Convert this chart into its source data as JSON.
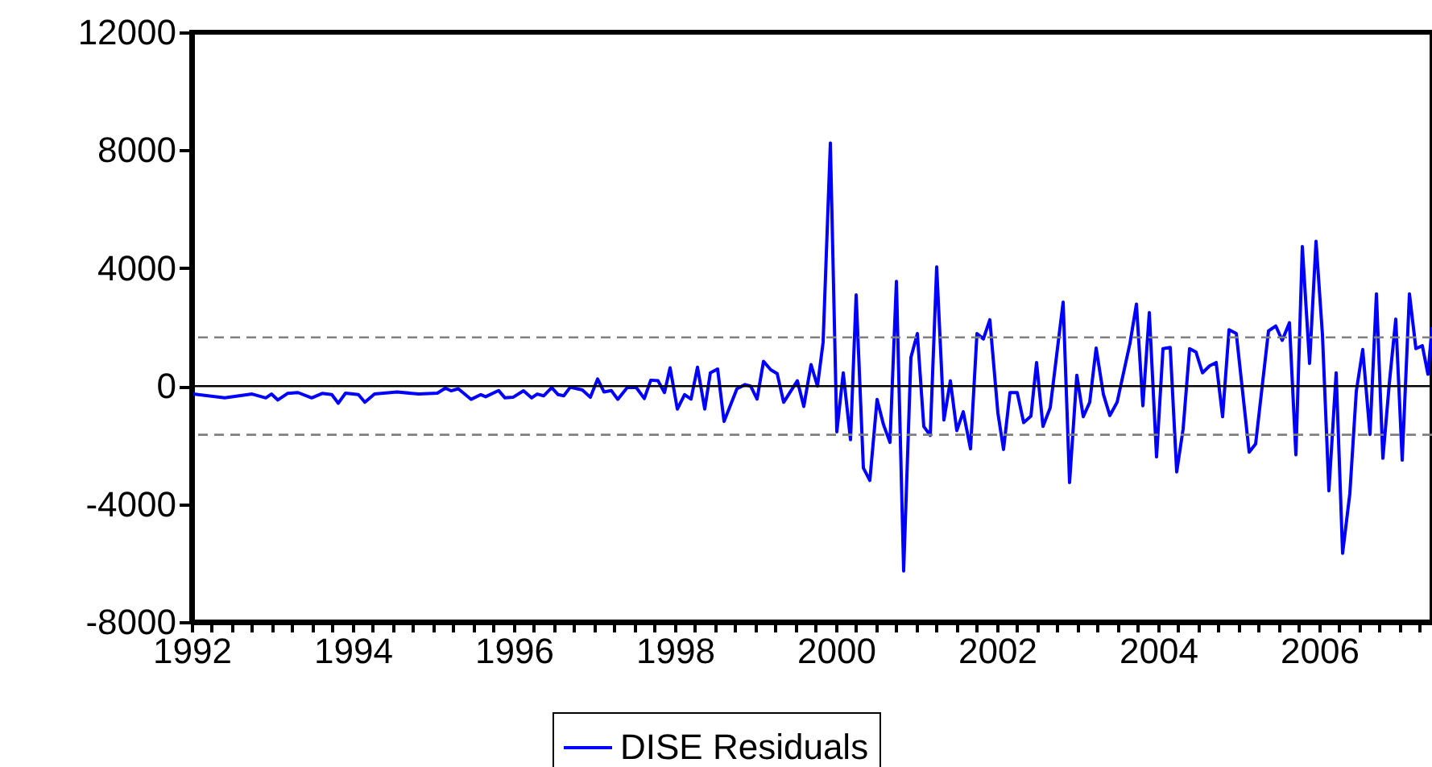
{
  "chart_data": {
    "type": "line",
    "legend": "bottom",
    "grid": false,
    "marker": "none",
    "line_style": "solid",
    "xlim": [
      1992,
      2007.4
    ],
    "xticks": [
      1992,
      {
        "value": 1992.25,
        "label": null
      },
      {
        "value": 1992.5,
        "label": null
      },
      {
        "value": 1992.75,
        "label": null
      },
      {
        "value": 1993,
        "label": null
      },
      {
        "value": 1993.25,
        "label": null
      },
      {
        "value": 1993.5,
        "label": null
      },
      {
        "value": 1993.75,
        "label": null
      },
      1994,
      {
        "value": 1994.25,
        "label": null
      },
      {
        "value": 1994.5,
        "label": null
      },
      {
        "value": 1994.75,
        "label": null
      },
      {
        "value": 1995,
        "label": null
      },
      {
        "value": 1995.25,
        "label": null
      },
      {
        "value": 1995.5,
        "label": null
      },
      {
        "value": 1995.75,
        "label": null
      },
      1996,
      {
        "value": 1996.25,
        "label": null
      },
      {
        "value": 1996.5,
        "label": null
      },
      {
        "value": 1996.75,
        "label": null
      },
      {
        "value": 1997,
        "label": null
      },
      {
        "value": 1997.25,
        "label": null
      },
      {
        "value": 1997.5,
        "label": null
      },
      {
        "value": 1997.75,
        "label": null
      },
      1998,
      {
        "value": 1998.25,
        "label": null
      },
      {
        "value": 1998.5,
        "label": null
      },
      {
        "value": 1998.75,
        "label": null
      },
      {
        "value": 1999,
        "label": null
      },
      {
        "value": 1999.25,
        "label": null
      },
      {
        "value": 1999.5,
        "label": null
      },
      {
        "value": 1999.75,
        "label": null
      },
      2000,
      {
        "value": 2000.25,
        "label": null
      },
      {
        "value": 2000.5,
        "label": null
      },
      {
        "value": 2000.75,
        "label": null
      },
      {
        "value": 2001,
        "label": null
      },
      {
        "value": 2001.25,
        "label": null
      },
      {
        "value": 2001.5,
        "label": null
      },
      {
        "value": 2001.75,
        "label": null
      },
      2002,
      {
        "value": 2002.25,
        "label": null
      },
      {
        "value": 2002.5,
        "label": null
      },
      {
        "value": 2002.75,
        "label": null
      },
      {
        "value": 2003,
        "label": null
      },
      {
        "value": 2003.25,
        "label": null
      },
      {
        "value": 2003.5,
        "label": null
      },
      {
        "value": 2003.75,
        "label": null
      },
      2004,
      {
        "value": 2004.25,
        "label": null
      },
      {
        "value": 2004.5,
        "label": null
      },
      {
        "value": 2004.75,
        "label": null
      },
      {
        "value": 2005,
        "label": null
      },
      {
        "value": 2005.25,
        "label": null
      },
      {
        "value": 2005.5,
        "label": null
      },
      {
        "value": 2005.75,
        "label": null
      },
      2006,
      {
        "value": 2006.25,
        "label": null
      },
      {
        "value": 2006.5,
        "label": null
      },
      {
        "value": 2006.75,
        "label": null
      },
      {
        "value": 2007,
        "label": null
      },
      {
        "value": 2007.25,
        "label": null
      }
    ],
    "ylim": [
      -8000,
      12000
    ],
    "yticks": [
      -8000,
      -4000,
      0,
      4000,
      8000,
      12000
    ],
    "ref_lines": [
      {
        "axis": "y",
        "value": 0,
        "color": "#000000",
        "line_style": "solid"
      },
      {
        "axis": "y",
        "value": 1650,
        "color": "#808080",
        "line_style": "dashed"
      },
      {
        "axis": "y",
        "value": -1650,
        "color": "#808080",
        "line_style": "dashed"
      }
    ],
    "series": [
      {
        "name": "DISE Residuals",
        "color": "#0000ff",
        "x": [
          1992.02,
          1992.41,
          1992.75,
          1992.92,
          1992.99,
          1993.07,
          1993.19,
          1993.32,
          1993.49,
          1993.62,
          1993.74,
          1993.82,
          1993.91,
          1994.07,
          1994.15,
          1994.27,
          1994.55,
          1994.82,
          1995.05,
          1995.15,
          1995.22,
          1995.31,
          1995.47,
          1995.59,
          1995.65,
          1995.81,
          1995.89,
          1995.99,
          1996.12,
          1996.22,
          1996.29,
          1996.37,
          1996.47,
          1996.55,
          1996.62,
          1996.7,
          1996.85,
          1996.95,
          1997.04,
          1997.12,
          1997.21,
          1997.29,
          1997.41,
          1997.52,
          1997.62,
          1997.7,
          1997.79,
          1997.87,
          1997.94,
          1998.03,
          1998.12,
          1998.2,
          1998.28,
          1998.37,
          1998.44,
          1998.53,
          1998.61,
          1998.77,
          1998.87,
          1998.94,
          1999.02,
          1999.1,
          1999.19,
          1999.27,
          1999.35,
          1999.52,
          1999.6,
          1999.69,
          1999.77,
          1999.84,
          1999.93,
          2000.01,
          2000.09,
          2000.18,
          2000.25,
          2000.34,
          2000.42,
          2000.51,
          2000.59,
          2000.67,
          2000.75,
          2000.84,
          2000.93,
          2001.01,
          2001.09,
          2001.17,
          2001.25,
          2001.34,
          2001.42,
          2001.5,
          2001.58,
          2001.67,
          2001.75,
          2001.83,
          2001.91,
          2002.01,
          2002.08,
          2002.16,
          2002.25,
          2002.33,
          2002.42,
          2002.49,
          2002.57,
          2002.66,
          2002.82,
          2002.9,
          2002.99,
          2003.07,
          2003.15,
          2003.23,
          2003.32,
          2003.4,
          2003.49,
          2003.65,
          2003.73,
          2003.81,
          2003.89,
          2003.98,
          2004.06,
          2004.15,
          2004.23,
          2004.31,
          2004.39,
          2004.47,
          2004.55,
          2004.64,
          2004.72,
          2004.8,
          2004.88,
          2004.97,
          2005.13,
          2005.21,
          2005.37,
          2005.46,
          2005.54,
          2005.63,
          2005.71,
          2005.79,
          2005.88,
          2005.96,
          2006.04,
          2006.12,
          2006.21,
          2006.29,
          2006.38,
          2006.46,
          2006.54,
          2006.63,
          2006.71,
          2006.79,
          2006.87,
          2006.95,
          2007.03,
          2007.12,
          2007.2,
          2007.28,
          2007.35,
          2007.4
        ],
        "values": [
          -270,
          -400,
          -270,
          -400,
          -270,
          -470,
          -250,
          -220,
          -400,
          -250,
          -290,
          -580,
          -240,
          -290,
          -550,
          -270,
          -200,
          -270,
          -240,
          -70,
          -160,
          -90,
          -450,
          -290,
          -360,
          -150,
          -400,
          -380,
          -160,
          -400,
          -270,
          -330,
          -50,
          -290,
          -330,
          -40,
          -130,
          -380,
          240,
          -200,
          -150,
          -450,
          -40,
          -50,
          -420,
          200,
          180,
          -220,
          620,
          -780,
          -290,
          -440,
          640,
          -780,
          450,
          580,
          -1200,
          -90,
          50,
          0,
          -440,
          840,
          550,
          420,
          -550,
          180,
          -690,
          730,
          0,
          1490,
          8240,
          -1550,
          450,
          -1820,
          3090,
          -2780,
          -3200,
          -450,
          -1310,
          -1910,
          3550,
          -6270,
          970,
          1780,
          -1370,
          -1670,
          4040,
          -1150,
          180,
          -1510,
          -870,
          -2130,
          1780,
          1600,
          2250,
          -910,
          -2150,
          -220,
          -220,
          -1240,
          -1020,
          800,
          -1370,
          -730,
          2850,
          -3270,
          370,
          -1040,
          -550,
          1290,
          -280,
          -1000,
          -550,
          1450,
          2780,
          -670,
          2490,
          -2400,
          1270,
          1310,
          -2910,
          -1450,
          1270,
          1150,
          450,
          690,
          800,
          -1040,
          1910,
          1780,
          -2240,
          -1960,
          1870,
          2040,
          1550,
          2150,
          -2330,
          4730,
          770,
          4910,
          1730,
          -3550,
          450,
          -5670,
          -3640,
          -180,
          1240,
          -1640,
          3130,
          -2450,
          90,
          2270,
          -2510,
          3130,
          1270,
          1370,
          400,
          2000
        ]
      }
    ]
  }
}
